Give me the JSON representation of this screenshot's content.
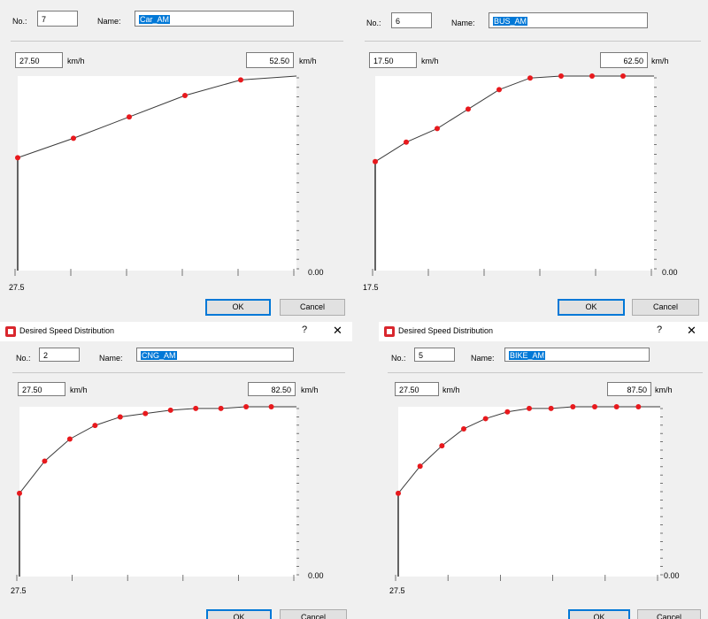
{
  "labels": {
    "no": "No.:",
    "name": "Name:",
    "unit": "km/h",
    "ok": "OK",
    "cancel": "Cancel",
    "zero": "0.00"
  },
  "title": "Desired Speed Distribution",
  "title_controls": {
    "help": "?",
    "close": "✕"
  },
  "dialogs": [
    {
      "no": "7",
      "name": "Car_AM",
      "min": "27.50",
      "max": "52.50",
      "axis_min": "27.5",
      "has_title": false
    },
    {
      "no": "6",
      "name": "BUS_AM",
      "min": "17.50",
      "max": "62.50",
      "axis_min": "17.5",
      "has_title": false
    },
    {
      "no": "2",
      "name": "CNG_AM",
      "min": "27.50",
      "max": "82.50",
      "axis_min": "27.5",
      "has_title": true
    },
    {
      "no": "5",
      "name": "BIKE_AM",
      "min": "27.50",
      "max": "87.50",
      "axis_min": "27.5",
      "has_title": true
    }
  ],
  "colors": {
    "point": "#e8191d",
    "line": "#3a3a3a",
    "selection": "#0078d7"
  },
  "chart_data": [
    {
      "type": "line",
      "title": "",
      "x_range": [
        27.5,
        52.5
      ],
      "y_range": [
        0,
        1
      ],
      "x": [
        27.5,
        32.5,
        37.5,
        42.5,
        47.5,
        52.5
      ],
      "y": [
        0.58,
        0.68,
        0.79,
        0.9,
        0.98,
        1.0
      ],
      "points_marked": [
        0,
        1,
        2,
        3,
        4
      ]
    },
    {
      "type": "line",
      "title": "",
      "x_range": [
        17.5,
        62.5
      ],
      "y_range": [
        0,
        1
      ],
      "x": [
        17.5,
        22.5,
        27.5,
        32.5,
        37.5,
        42.5,
        47.5,
        52.5,
        57.5,
        62.5
      ],
      "y": [
        0.56,
        0.66,
        0.73,
        0.83,
        0.93,
        0.99,
        1.0,
        1.0,
        1.0,
        1.0
      ],
      "points_marked": [
        0,
        1,
        2,
        3,
        4,
        5,
        6,
        7,
        8
      ]
    },
    {
      "type": "line",
      "title": "",
      "x_range": [
        27.5,
        82.5
      ],
      "y_range": [
        0,
        1
      ],
      "x": [
        27.5,
        32.5,
        37.5,
        42.5,
        47.5,
        52.5,
        57.5,
        62.5,
        67.5,
        72.5,
        77.5,
        82.5
      ],
      "y": [
        0.49,
        0.68,
        0.81,
        0.89,
        0.94,
        0.96,
        0.98,
        0.99,
        0.99,
        1.0,
        1.0,
        1.0
      ],
      "points_marked": [
        0,
        1,
        2,
        3,
        4,
        5,
        6,
        7,
        8,
        9,
        10
      ]
    },
    {
      "type": "line",
      "title": "",
      "x_range": [
        27.5,
        87.5
      ],
      "y_range": [
        0,
        1
      ],
      "x": [
        27.5,
        32.5,
        37.5,
        42.5,
        47.5,
        52.5,
        57.5,
        62.5,
        67.5,
        72.5,
        77.5,
        82.5,
        87.5
      ],
      "y": [
        0.49,
        0.65,
        0.77,
        0.87,
        0.93,
        0.97,
        0.99,
        0.99,
        1.0,
        1.0,
        1.0,
        1.0,
        1.0
      ],
      "points_marked": [
        0,
        1,
        2,
        3,
        4,
        5,
        6,
        7,
        8,
        9,
        10,
        11
      ]
    }
  ]
}
